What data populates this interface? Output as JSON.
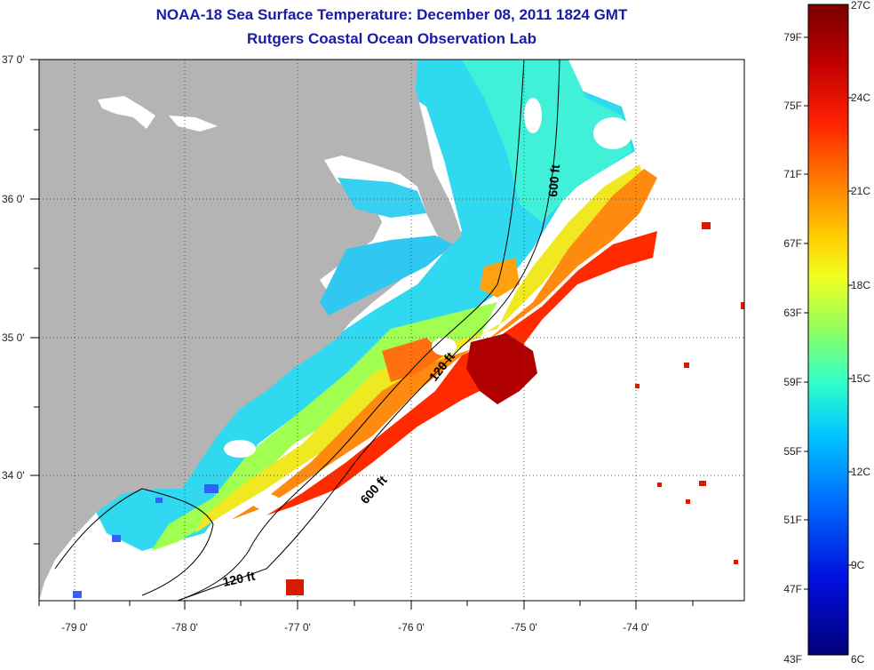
{
  "title": {
    "line1": "NOAA-18 Sea Surface Temperature:  December 08, 2011 1824 GMT",
    "line2": "Rutgers Coastal Ocean Observation Lab"
  },
  "map": {
    "lon_labels": [
      "-79 0'",
      "-78 0'",
      "-77 0'",
      "-76 0'",
      "-75 0'",
      "-74 0'"
    ],
    "lat_labels": [
      "37 0'",
      "36 0'",
      "35 0'",
      "34 0'"
    ],
    "contour_labels": {
      "ft600_north": "600 ft",
      "ft120_mid": "120 ft",
      "ft600_south": "600 ft",
      "ft120_south": "120 ft"
    }
  },
  "colorbar": {
    "fahrenheit": [
      "79F",
      "75F",
      "71F",
      "67F",
      "63F",
      "59F",
      "55F",
      "51F",
      "47F",
      "43F"
    ],
    "celsius": [
      "27C",
      "24C",
      "21C",
      "18C",
      "15C",
      "12C",
      "9C",
      "6C"
    ],
    "colors": [
      "#7a0000",
      "#c00000",
      "#ff2000",
      "#ff7a00",
      "#ffd000",
      "#f0ff20",
      "#90ff60",
      "#30ffc8",
      "#00c8ff",
      "#0070ff",
      "#0010e0",
      "#00007a"
    ]
  },
  "palette": {
    "land": "#b4b4b4",
    "title": "#1a1aa8"
  }
}
